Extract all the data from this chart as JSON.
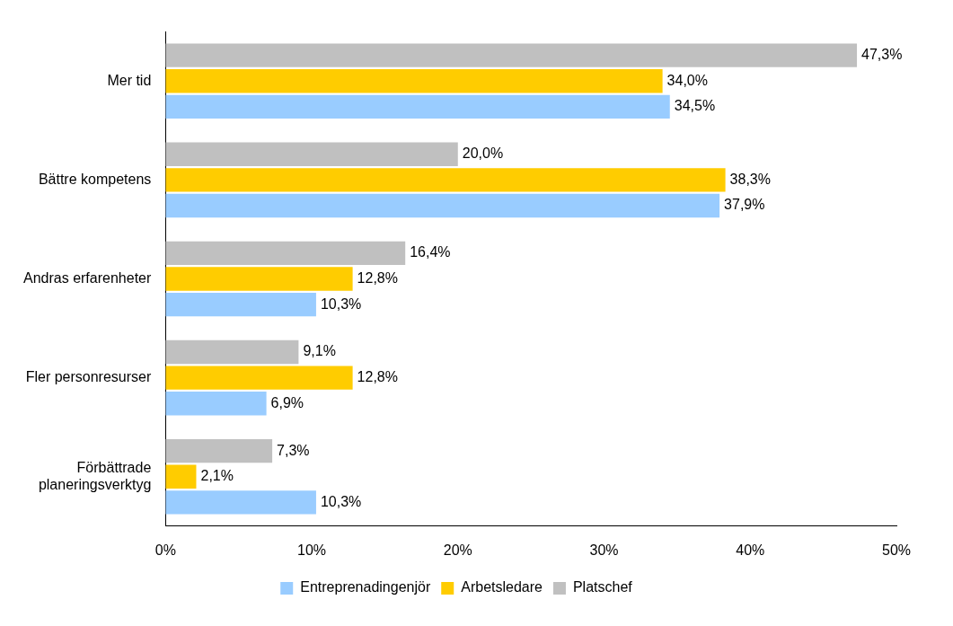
{
  "chart_data": {
    "type": "bar",
    "orientation": "horizontal",
    "categories": [
      "Mer tid",
      "Bättre kompetens",
      "Andras erfarenheter",
      "Fler personresurser",
      "Förbättrade planeringsverktyg"
    ],
    "series": [
      {
        "name": "Platschef",
        "color": "#c0c0c0",
        "values": [
          47.3,
          20.0,
          16.4,
          9.1,
          7.3
        ],
        "value_labels": [
          "47,3%",
          "20,0%",
          "16,4%",
          "9,1%",
          "7,3%"
        ]
      },
      {
        "name": "Arbetsledare",
        "color": "#ffcc00",
        "values": [
          34.0,
          38.3,
          12.8,
          12.8,
          2.1
        ],
        "value_labels": [
          "34,0%",
          "38,3%",
          "12,8%",
          "12,8%",
          "2,1%"
        ]
      },
      {
        "name": "Entreprenadingenjör",
        "color": "#99ccff",
        "values": [
          34.5,
          37.9,
          10.3,
          6.9,
          10.3
        ],
        "value_labels": [
          "34,5%",
          "37,9%",
          "10,3%",
          "6,9%",
          "10,3%"
        ]
      }
    ],
    "xlim": [
      0,
      50
    ],
    "xticks": [
      {
        "value": 0,
        "label": "0%"
      },
      {
        "value": 10,
        "label": "10%"
      },
      {
        "value": 20,
        "label": "20%"
      },
      {
        "value": 30,
        "label": "30%"
      },
      {
        "value": 40,
        "label": "40%"
      },
      {
        "value": 50,
        "label": "50%"
      }
    ],
    "grid": false,
    "legend": "bottom"
  }
}
